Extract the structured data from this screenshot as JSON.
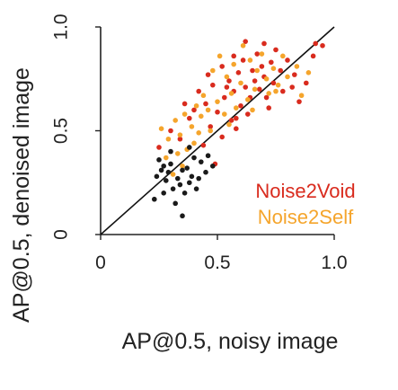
{
  "chart_data": {
    "type": "scatter",
    "title": "",
    "xlabel": "AP@0.5, noisy image",
    "ylabel": "AP@0.5, denoised image",
    "xlim": [
      0,
      1.0
    ],
    "ylim": [
      0,
      1.0
    ],
    "xticks": [
      "0",
      "0.5",
      "1.0"
    ],
    "yticks": [
      "0",
      "0.5",
      "1.0"
    ],
    "grid": false,
    "diagonal": true,
    "legend_position": "bottom-right",
    "series": [
      {
        "name": "Noise2Void",
        "color": "#d92b1e",
        "points": [
          [
            0.38,
            0.56
          ],
          [
            0.42,
            0.69
          ],
          [
            0.45,
            0.63
          ],
          [
            0.46,
            0.77
          ],
          [
            0.47,
            0.52
          ],
          [
            0.48,
            0.72
          ],
          [
            0.5,
            0.59
          ],
          [
            0.52,
            0.81
          ],
          [
            0.53,
            0.66
          ],
          [
            0.55,
            0.74
          ],
          [
            0.56,
            0.55
          ],
          [
            0.57,
            0.69
          ],
          [
            0.59,
            0.78
          ],
          [
            0.6,
            0.62
          ],
          [
            0.61,
            0.84
          ],
          [
            0.62,
            0.71
          ],
          [
            0.64,
            0.66
          ],
          [
            0.65,
            0.79
          ],
          [
            0.66,
            0.74
          ],
          [
            0.67,
            0.87
          ],
          [
            0.68,
            0.7
          ],
          [
            0.69,
            0.81
          ],
          [
            0.7,
            0.76
          ],
          [
            0.71,
            0.66
          ],
          [
            0.73,
            0.83
          ],
          [
            0.74,
            0.73
          ],
          [
            0.75,
            0.89
          ],
          [
            0.77,
            0.79
          ],
          [
            0.78,
            0.69
          ],
          [
            0.8,
            0.84
          ],
          [
            0.83,
            0.77
          ],
          [
            0.85,
            0.64
          ],
          [
            0.88,
            0.73
          ],
          [
            0.92,
            0.92
          ],
          [
            0.95,
            0.91
          ],
          [
            0.52,
            0.47
          ],
          [
            0.49,
            0.34
          ],
          [
            0.58,
            0.51
          ],
          [
            0.63,
            0.58
          ],
          [
            0.44,
            0.43
          ],
          [
            0.4,
            0.6
          ],
          [
            0.36,
            0.63
          ],
          [
            0.54,
            0.71
          ],
          [
            0.72,
            0.61
          ],
          [
            0.58,
            0.56
          ],
          [
            0.82,
            0.71
          ],
          [
            0.91,
            0.86
          ],
          [
            0.25,
            0.42
          ],
          [
            0.3,
            0.5
          ],
          [
            0.34,
            0.46
          ],
          [
            0.7,
            0.92
          ],
          [
            0.62,
            0.93
          ],
          [
            0.57,
            0.86
          ]
        ]
      },
      {
        "name": "Noise2Self",
        "color": "#f5a52c",
        "points": [
          [
            0.26,
            0.51
          ],
          [
            0.29,
            0.46
          ],
          [
            0.32,
            0.55
          ],
          [
            0.34,
            0.48
          ],
          [
            0.36,
            0.58
          ],
          [
            0.39,
            0.52
          ],
          [
            0.41,
            0.62
          ],
          [
            0.43,
            0.57
          ],
          [
            0.44,
            0.67
          ],
          [
            0.46,
            0.6
          ],
          [
            0.48,
            0.79
          ],
          [
            0.5,
            0.64
          ],
          [
            0.51,
            0.86
          ],
          [
            0.53,
            0.58
          ],
          [
            0.54,
            0.76
          ],
          [
            0.56,
            0.68
          ],
          [
            0.57,
            0.82
          ],
          [
            0.58,
            0.61
          ],
          [
            0.6,
            0.73
          ],
          [
            0.61,
            0.91
          ],
          [
            0.63,
            0.65
          ],
          [
            0.64,
            0.84
          ],
          [
            0.66,
            0.7
          ],
          [
            0.67,
            0.79
          ],
          [
            0.69,
            0.87
          ],
          [
            0.71,
            0.75
          ],
          [
            0.72,
            0.68
          ],
          [
            0.74,
            0.8
          ],
          [
            0.76,
            0.72
          ],
          [
            0.78,
            0.86
          ],
          [
            0.8,
            0.76
          ],
          [
            0.84,
            0.81
          ],
          [
            0.86,
            0.67
          ],
          [
            0.89,
            0.78
          ],
          [
            0.33,
            0.39
          ],
          [
            0.35,
            0.33
          ],
          [
            0.4,
            0.44
          ],
          [
            0.31,
            0.29
          ],
          [
            0.37,
            0.41
          ],
          [
            0.55,
            0.53
          ],
          [
            0.47,
            0.5
          ],
          [
            0.42,
            0.49
          ],
          [
            0.28,
            0.37
          ],
          [
            0.65,
            0.6
          ],
          [
            0.75,
            0.69
          ]
        ]
      },
      {
        "name": "",
        "color": "#1a1a1a",
        "points": [
          [
            0.25,
            0.36
          ],
          [
            0.27,
            0.33
          ],
          [
            0.26,
            0.31
          ],
          [
            0.29,
            0.3
          ],
          [
            0.3,
            0.34
          ],
          [
            0.28,
            0.26
          ],
          [
            0.31,
            0.22
          ],
          [
            0.33,
            0.27
          ],
          [
            0.35,
            0.31
          ],
          [
            0.34,
            0.24
          ],
          [
            0.36,
            0.2
          ],
          [
            0.38,
            0.25
          ],
          [
            0.39,
            0.28
          ],
          [
            0.37,
            0.32
          ],
          [
            0.42,
            0.27
          ],
          [
            0.45,
            0.3
          ],
          [
            0.43,
            0.35
          ],
          [
            0.48,
            0.33
          ],
          [
            0.4,
            0.37
          ],
          [
            0.24,
            0.28
          ],
          [
            0.23,
            0.17
          ],
          [
            0.27,
            0.2
          ],
          [
            0.35,
            0.09
          ],
          [
            0.32,
            0.15
          ],
          [
            0.41,
            0.22
          ],
          [
            0.3,
            0.4
          ],
          [
            0.46,
            0.38
          ],
          [
            0.38,
            0.42
          ]
        ]
      }
    ],
    "legend": [
      "Noise2Void",
      "Noise2Self"
    ]
  }
}
